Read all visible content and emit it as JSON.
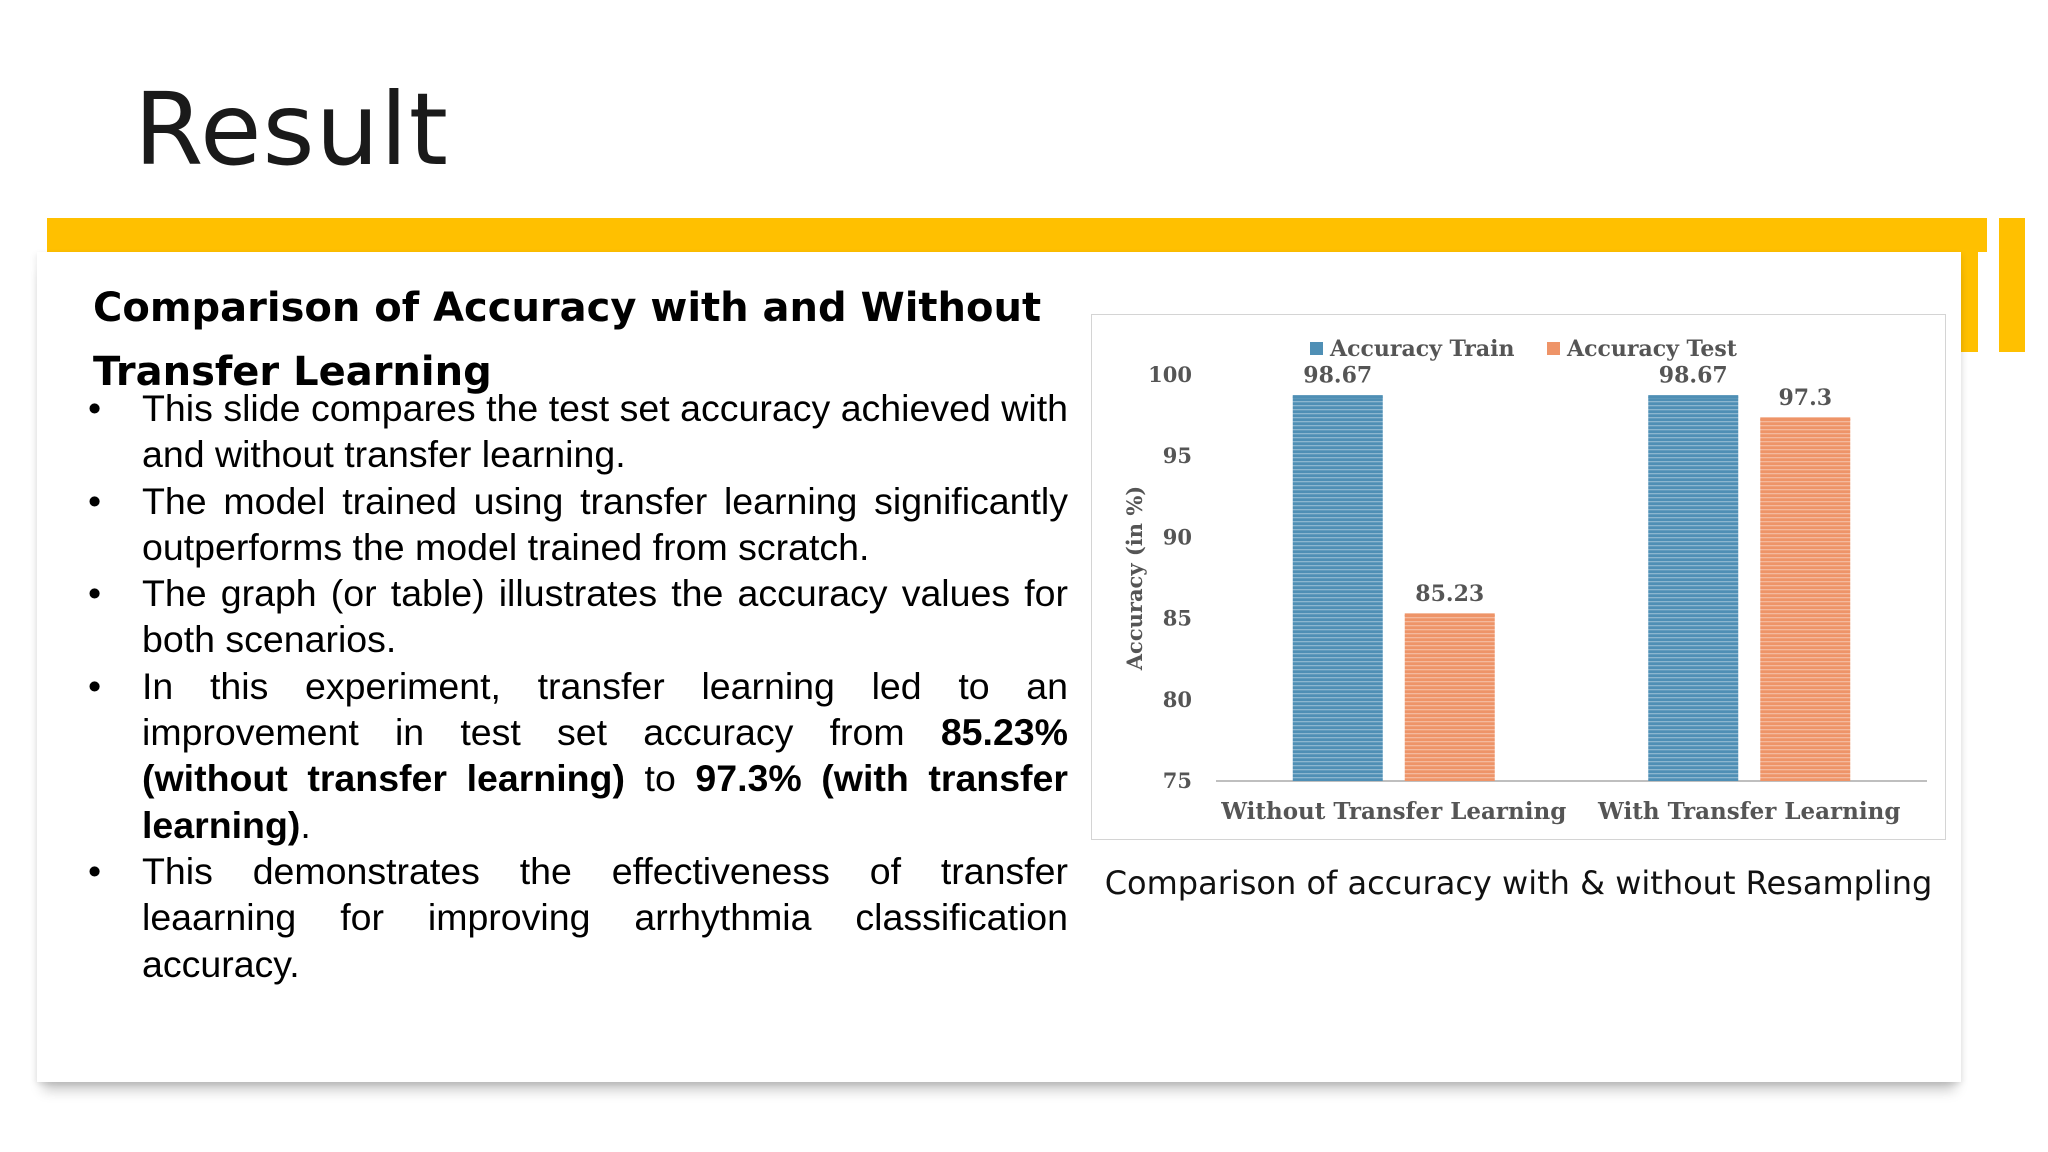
{
  "slide": {
    "title": "Result",
    "section_heading": "Comparison of Accuracy with and Without Transfer Learning",
    "accent_color": "#FFC000"
  },
  "bullets": [
    {
      "segments": [
        {
          "text": "This slide compares the test set accuracy achieved with and without transfer learning.",
          "bold": false
        }
      ]
    },
    {
      "segments": [
        {
          "text": "The model trained using transfer learning significantly outperforms the model trained from scratch.",
          "bold": false
        }
      ]
    },
    {
      "segments": [
        {
          "text": "The graph (or table) illustrates the accuracy values for both scenarios.",
          "bold": false
        }
      ]
    },
    {
      "segments": [
        {
          "text": "In this experiment, transfer learning led to an improvement in test set accuracy from ",
          "bold": false
        },
        {
          "text": "85.23% (without transfer learning)",
          "bold": true
        },
        {
          "text": " to ",
          "bold": false
        },
        {
          "text": "97.3% (with transfer learning)",
          "bold": true
        },
        {
          "text": ".",
          "bold": false
        }
      ]
    },
    {
      "segments": [
        {
          "text": "This demonstrates the effectiveness of transfer leaarning for improving arrhythmia classification accuracy.",
          "bold": false
        }
      ]
    }
  ],
  "chart_caption": "Comparison of accuracy with & without Resampling",
  "chart_data": {
    "type": "bar",
    "categories": [
      "Without Transfer Learning",
      "With Transfer Learning"
    ],
    "series": [
      {
        "name": "Accuracy Train",
        "values": [
          98.67,
          98.67
        ],
        "color": "#4F8FB5"
      },
      {
        "name": "Accuracy Test",
        "values": [
          85.23,
          97.3
        ],
        "color": "#EE9468"
      }
    ],
    "data_labels": [
      [
        "98.67",
        "98.67"
      ],
      [
        "85.23",
        "97.3"
      ]
    ],
    "ylabel": "Accuracy (in %)",
    "ylim": [
      75,
      100
    ],
    "yticks": [
      75,
      80,
      85,
      90,
      95,
      100
    ],
    "legend_position": "top",
    "grid": false
  }
}
